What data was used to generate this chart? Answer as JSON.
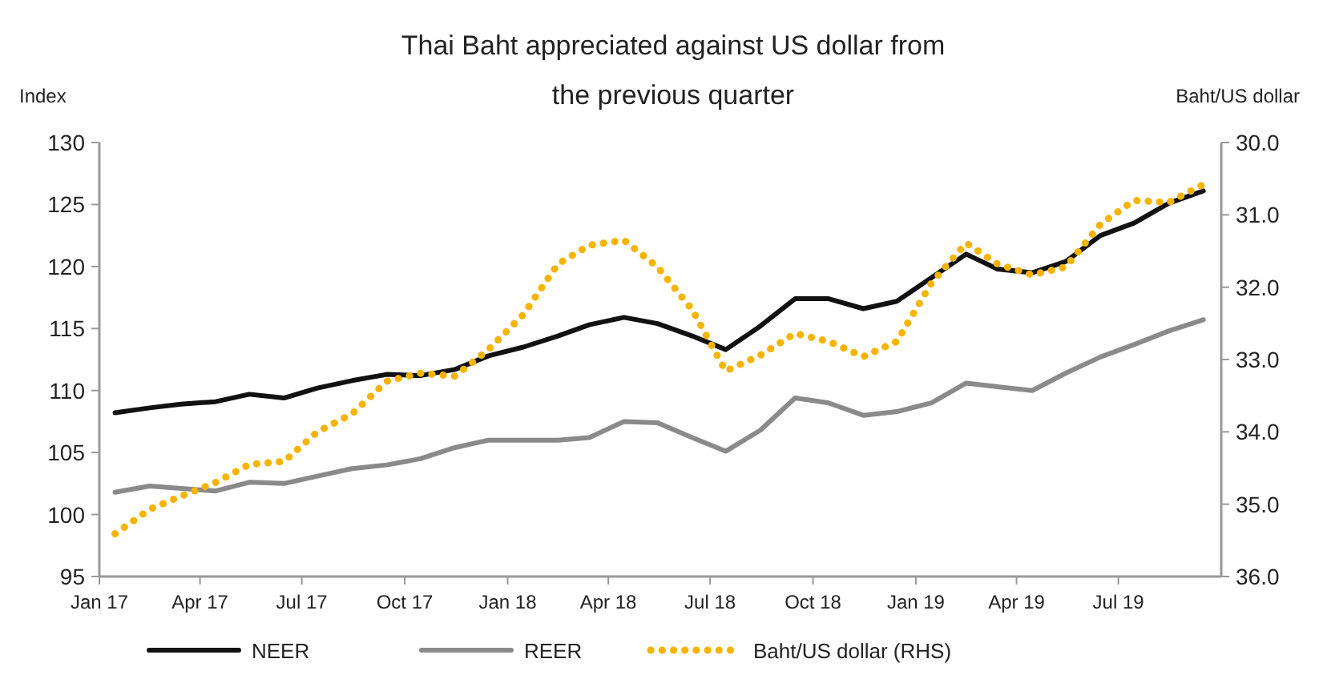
{
  "chart_data": {
    "type": "line",
    "title": "Thai Baht appreciated against US dollar from the previous quarter",
    "ylabel": "Index",
    "y2label": "Baht/US dollar",
    "x": [
      "2017-01-15",
      "2017-02-15",
      "2017-03-15",
      "2017-04-15",
      "2017-05-15",
      "2017-06-15",
      "2017-07-15",
      "2017-08-15",
      "2017-09-15",
      "2017-10-15",
      "2017-11-15",
      "2017-12-15",
      "2018-01-15",
      "2018-02-15",
      "2018-03-15",
      "2018-04-15",
      "2018-05-15",
      "2018-06-15",
      "2018-07-15",
      "2018-08-15",
      "2018-09-15",
      "2018-10-15",
      "2018-11-15",
      "2018-12-15",
      "2019-01-15",
      "2019-02-15",
      "2019-03-15",
      "2019-04-15",
      "2019-05-15",
      "2019-06-15",
      "2019-07-15",
      "2019-08-15",
      "2019-09-15"
    ],
    "series": [
      {
        "name": "NEER",
        "color": "#111111",
        "line_style": "solid",
        "values": [
          108.2,
          108.6,
          108.9,
          109.1,
          109.7,
          109.4,
          110.2,
          110.8,
          111.3,
          111.2,
          111.7,
          112.8,
          113.5,
          114.4,
          115.3,
          115.9,
          115.4,
          114.4,
          113.3,
          115.2,
          117.4,
          117.4,
          116.6,
          117.2,
          119.1,
          121.0,
          119.8,
          119.5,
          120.4,
          122.5,
          123.5,
          125.1,
          126.1
        ]
      },
      {
        "name": "REER",
        "color": "#8a8a8a",
        "line_style": "solid",
        "values": [
          101.8,
          102.3,
          102.1,
          101.9,
          102.6,
          102.5,
          103.1,
          103.7,
          104.0,
          104.5,
          105.4,
          106.0,
          106.0,
          106.0,
          106.2,
          107.5,
          107.4,
          106.2,
          105.1,
          106.8,
          109.4,
          109.0,
          108.0,
          108.3,
          109.0,
          110.6,
          110.3,
          110.0,
          111.4,
          112.7,
          113.7,
          114.8,
          115.7
        ]
      },
      {
        "name": "Baht/US dollar (RHS)",
        "color": "#f5b400",
        "axis": "y2",
        "line_style": "dotted",
        "values": [
          35.41,
          35.07,
          34.89,
          34.7,
          34.45,
          34.41,
          34.0,
          33.75,
          33.3,
          33.19,
          33.23,
          32.86,
          32.38,
          31.68,
          31.42,
          31.35,
          31.72,
          32.31,
          33.16,
          32.94,
          32.64,
          32.75,
          32.96,
          32.75,
          31.94,
          31.39,
          31.68,
          31.83,
          31.72,
          31.13,
          30.8,
          30.83,
          30.58
        ]
      }
    ],
    "xlim": [
      "2017-01",
      "2019-10"
    ],
    "xticks": [
      {
        "value": "2017-01",
        "label": "Jan 17"
      },
      {
        "value": "2017-04",
        "label": "Apr 17"
      },
      {
        "value": "2017-07",
        "label": "Jul 17"
      },
      {
        "value": "2017-10",
        "label": "Oct 17"
      },
      {
        "value": "2018-01",
        "label": "Jan 18"
      },
      {
        "value": "2018-04",
        "label": "Apr 18"
      },
      {
        "value": "2018-07",
        "label": "Jul 18"
      },
      {
        "value": "2018-10",
        "label": "Oct 18"
      },
      {
        "value": "2019-01",
        "label": "Jan 19"
      },
      {
        "value": "2019-04",
        "label": "Apr 19"
      },
      {
        "value": "2019-07",
        "label": "Jul 19"
      }
    ],
    "ylim": [
      95,
      130
    ],
    "yticks": [
      95,
      100,
      105,
      110,
      115,
      120,
      125,
      130
    ],
    "y2lim": [
      36,
      30
    ],
    "y2ticks": [
      {
        "value": 36,
        "label": "36.0"
      },
      {
        "value": 35,
        "label": "35.0"
      },
      {
        "value": 34,
        "label": "34.0"
      },
      {
        "value": 33,
        "label": "33.0"
      },
      {
        "value": 32,
        "label": "32.0"
      },
      {
        "value": 31,
        "label": "31.0"
      },
      {
        "value": 30,
        "label": "30.0"
      }
    ],
    "grid": false,
    "legend": "bottom",
    "marker": "none"
  }
}
